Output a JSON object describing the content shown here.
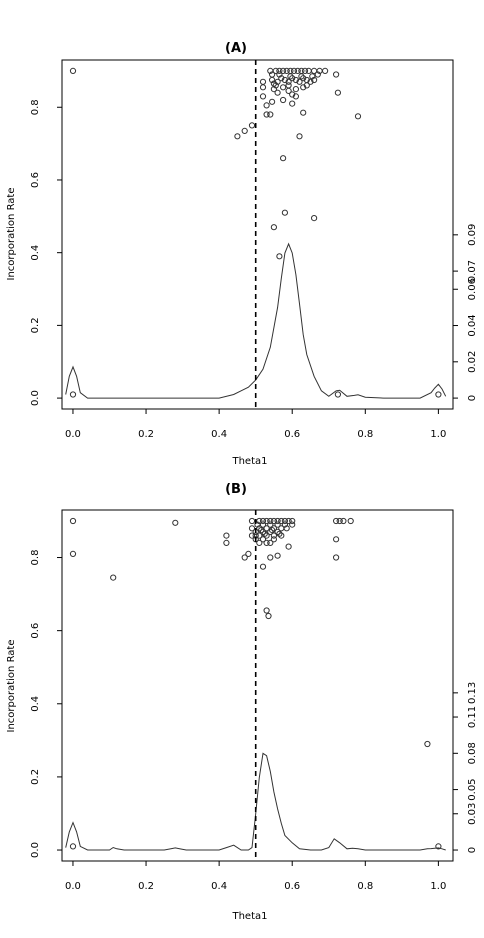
{
  "chart_data": [
    {
      "type": "scatter",
      "title": "(A)",
      "xlabel": "Theta1",
      "ylabel": "Incorporation Rate",
      "xlim": [
        -0.03,
        1.04
      ],
      "ylim": [
        -0.03,
        0.93
      ],
      "x_ticks": [
        0,
        0.2,
        0.4,
        0.6,
        0.8,
        1
      ],
      "x_tick_labels": [
        "0.0",
        "0.2",
        "0.4",
        "0.6",
        "0.8",
        "1.0"
      ],
      "y_ticks": [
        0,
        0.2,
        0.4,
        0.6,
        0.8
      ],
      "y_tick_labels": [
        "0.0",
        "0.2",
        "0.4",
        "0.6",
        "0.8"
      ],
      "y2_ticks": [
        0,
        0.02,
        0.04,
        0.06,
        0.07,
        0.09
      ],
      "y2_tick_labels": [
        "0",
        "0.02",
        "0.04",
        "0.06",
        "0.07",
        "0.09"
      ],
      "y2_max": 0.1002,
      "reference_line_x": 0.5,
      "grid": false,
      "points": [
        [
          0.0,
          0.9
        ],
        [
          0.0,
          0.01
        ],
        [
          0.725,
          0.01
        ],
        [
          1.0,
          0.01
        ],
        [
          0.62,
          0.72
        ],
        [
          0.63,
          0.785
        ],
        [
          0.575,
          0.66
        ],
        [
          0.78,
          0.775
        ],
        [
          0.725,
          0.84
        ],
        [
          0.72,
          0.89
        ],
        [
          0.58,
          0.51
        ],
        [
          0.66,
          0.495
        ],
        [
          0.55,
          0.47
        ],
        [
          0.565,
          0.39
        ],
        [
          0.47,
          0.735
        ],
        [
          0.49,
          0.75
        ],
        [
          0.45,
          0.72
        ],
        [
          0.53,
          0.78
        ],
        [
          0.53,
          0.805
        ],
        [
          0.54,
          0.78
        ],
        [
          0.52,
          0.83
        ],
        [
          0.52,
          0.855
        ],
        [
          0.55,
          0.85
        ],
        [
          0.545,
          0.815
        ],
        [
          0.575,
          0.82
        ],
        [
          0.56,
          0.84
        ],
        [
          0.6,
          0.835
        ],
        [
          0.6,
          0.81
        ],
        [
          0.61,
          0.85
        ],
        [
          0.59,
          0.86
        ],
        [
          0.54,
          0.9
        ],
        [
          0.545,
          0.89
        ],
        [
          0.555,
          0.9
        ],
        [
          0.565,
          0.9
        ],
        [
          0.575,
          0.9
        ],
        [
          0.585,
          0.9
        ],
        [
          0.595,
          0.9
        ],
        [
          0.605,
          0.9
        ],
        [
          0.615,
          0.9
        ],
        [
          0.625,
          0.9
        ],
        [
          0.635,
          0.9
        ],
        [
          0.645,
          0.9
        ],
        [
          0.66,
          0.9
        ],
        [
          0.675,
          0.9
        ],
        [
          0.69,
          0.9
        ],
        [
          0.67,
          0.89
        ],
        [
          0.545,
          0.875
        ],
        [
          0.56,
          0.87
        ],
        [
          0.57,
          0.88
        ],
        [
          0.58,
          0.875
        ],
        [
          0.59,
          0.87
        ],
        [
          0.6,
          0.88
        ],
        [
          0.61,
          0.875
        ],
        [
          0.62,
          0.87
        ],
        [
          0.63,
          0.88
        ],
        [
          0.64,
          0.875
        ],
        [
          0.65,
          0.87
        ],
        [
          0.66,
          0.875
        ],
        [
          0.565,
          0.89
        ],
        [
          0.595,
          0.885
        ],
        [
          0.625,
          0.885
        ],
        [
          0.655,
          0.885
        ],
        [
          0.555,
          0.86
        ],
        [
          0.59,
          0.845
        ],
        [
          0.63,
          0.855
        ],
        [
          0.64,
          0.86
        ],
        [
          0.61,
          0.83
        ],
        [
          0.575,
          0.855
        ],
        [
          0.55,
          0.865
        ],
        [
          0.52,
          0.87
        ]
      ],
      "density": {
        "x": [
          -0.02,
          -0.01,
          0.0,
          0.01,
          0.02,
          0.04,
          0.1,
          0.2,
          0.3,
          0.4,
          0.44,
          0.46,
          0.48,
          0.5,
          0.52,
          0.54,
          0.56,
          0.57,
          0.58,
          0.59,
          0.6,
          0.61,
          0.62,
          0.63,
          0.64,
          0.66,
          0.68,
          0.7,
          0.72,
          0.73,
          0.75,
          0.77,
          0.78,
          0.8,
          0.85,
          0.9,
          0.95,
          0.98,
          0.99,
          1.0,
          1.01,
          1.02
        ],
        "y": [
          0.002,
          0.012,
          0.0172,
          0.012,
          0.003,
          0.0,
          0.0,
          0.0,
          0.0,
          0.0,
          0.002,
          0.004,
          0.006,
          0.01,
          0.016,
          0.028,
          0.05,
          0.066,
          0.08,
          0.085,
          0.08,
          0.068,
          0.052,
          0.035,
          0.024,
          0.012,
          0.004,
          0.001,
          0.004,
          0.0043,
          0.001,
          0.0015,
          0.0018,
          0.0005,
          0.0,
          0.0,
          0.0,
          0.003,
          0.0055,
          0.0076,
          0.005,
          0.001
        ]
      }
    },
    {
      "type": "scatter",
      "title": "(B)",
      "xlabel": "Theta1",
      "ylabel": "Incorporation Rate",
      "xlim": [
        -0.03,
        1.04
      ],
      "ylim": [
        -0.03,
        0.93
      ],
      "x_ticks": [
        0,
        0.2,
        0.4,
        0.6,
        0.8,
        1
      ],
      "x_tick_labels": [
        "0.0",
        "0.2",
        "0.4",
        "0.6",
        "0.8",
        "1.0"
      ],
      "y_ticks": [
        0,
        0.2,
        0.4,
        0.6,
        0.8
      ],
      "y_tick_labels": [
        "0.0",
        "0.2",
        "0.4",
        "0.6",
        "0.8"
      ],
      "y2_ticks": [
        0,
        0.03,
        0.05,
        0.08,
        0.11,
        0.13
      ],
      "y2_tick_labels": [
        "0",
        "0.03",
        "0.05",
        "0.08",
        "0.11",
        "0.13"
      ],
      "y2_max": 0.1512,
      "reference_line_x": 0.5,
      "grid": false,
      "points": [
        [
          0.0,
          0.9
        ],
        [
          0.0,
          0.81
        ],
        [
          0.0,
          0.01
        ],
        [
          0.11,
          0.745
        ],
        [
          0.28,
          0.895
        ],
        [
          0.42,
          0.86
        ],
        [
          0.42,
          0.84
        ],
        [
          0.47,
          0.8
        ],
        [
          0.48,
          0.81
        ],
        [
          0.52,
          0.775
        ],
        [
          0.53,
          0.655
        ],
        [
          0.535,
          0.64
        ],
        [
          0.54,
          0.8
        ],
        [
          0.56,
          0.805
        ],
        [
          0.59,
          0.83
        ],
        [
          0.72,
          0.8
        ],
        [
          0.72,
          0.85
        ],
        [
          0.72,
          0.9
        ],
        [
          0.73,
          0.9
        ],
        [
          0.74,
          0.9
        ],
        [
          0.76,
          0.9
        ],
        [
          0.97,
          0.29
        ],
        [
          1.0,
          0.01
        ],
        [
          0.49,
          0.9
        ],
        [
          0.49,
          0.88
        ],
        [
          0.49,
          0.86
        ],
        [
          0.5,
          0.87
        ],
        [
          0.5,
          0.85
        ],
        [
          0.51,
          0.9
        ],
        [
          0.51,
          0.88
        ],
        [
          0.51,
          0.86
        ],
        [
          0.52,
          0.9
        ],
        [
          0.52,
          0.89
        ],
        [
          0.52,
          0.87
        ],
        [
          0.52,
          0.85
        ],
        [
          0.53,
          0.9
        ],
        [
          0.53,
          0.88
        ],
        [
          0.53,
          0.86
        ],
        [
          0.54,
          0.9
        ],
        [
          0.54,
          0.89
        ],
        [
          0.54,
          0.87
        ],
        [
          0.54,
          0.84
        ],
        [
          0.55,
          0.9
        ],
        [
          0.55,
          0.88
        ],
        [
          0.55,
          0.86
        ],
        [
          0.56,
          0.9
        ],
        [
          0.56,
          0.89
        ],
        [
          0.56,
          0.87
        ],
        [
          0.57,
          0.9
        ],
        [
          0.57,
          0.88
        ],
        [
          0.57,
          0.86
        ],
        [
          0.58,
          0.9
        ],
        [
          0.58,
          0.89
        ],
        [
          0.59,
          0.9
        ],
        [
          0.585,
          0.88
        ],
        [
          0.6,
          0.9
        ],
        [
          0.6,
          0.89
        ],
        [
          0.53,
          0.84
        ],
        [
          0.51,
          0.84
        ],
        [
          0.5,
          0.86
        ],
        [
          0.55,
          0.85
        ],
        [
          0.565,
          0.865
        ],
        [
          0.515,
          0.875
        ],
        [
          0.525,
          0.865
        ],
        [
          0.545,
          0.875
        ],
        [
          0.505,
          0.89
        ]
      ],
      "density": {
        "x": [
          -0.02,
          -0.01,
          0.0,
          0.01,
          0.02,
          0.04,
          0.08,
          0.1,
          0.11,
          0.12,
          0.14,
          0.25,
          0.27,
          0.28,
          0.29,
          0.31,
          0.4,
          0.42,
          0.44,
          0.46,
          0.48,
          0.49,
          0.5,
          0.51,
          0.52,
          0.53,
          0.54,
          0.55,
          0.56,
          0.57,
          0.58,
          0.6,
          0.62,
          0.65,
          0.68,
          0.7,
          0.715,
          0.73,
          0.75,
          0.765,
          0.78,
          0.8,
          0.9,
          0.95,
          0.97,
          0.98,
          0.99,
          1.0,
          1.01,
          1.02
        ],
        "y": [
          0.002,
          0.015,
          0.0227,
          0.015,
          0.003,
          0.0,
          0.0,
          0.0,
          0.0021,
          0.001,
          0.0,
          0.0,
          0.0012,
          0.0018,
          0.0012,
          0.0,
          0.0,
          0.002,
          0.004,
          0.0,
          0.0,
          0.002,
          0.03,
          0.06,
          0.08,
          0.078,
          0.065,
          0.048,
          0.034,
          0.022,
          0.012,
          0.006,
          0.001,
          0.0,
          0.0,
          0.002,
          0.0093,
          0.006,
          0.001,
          0.0015,
          0.001,
          0.0,
          0.0,
          0.0,
          0.001,
          0.0012,
          0.0015,
          0.0018,
          0.001,
          0.0
        ]
      }
    }
  ]
}
